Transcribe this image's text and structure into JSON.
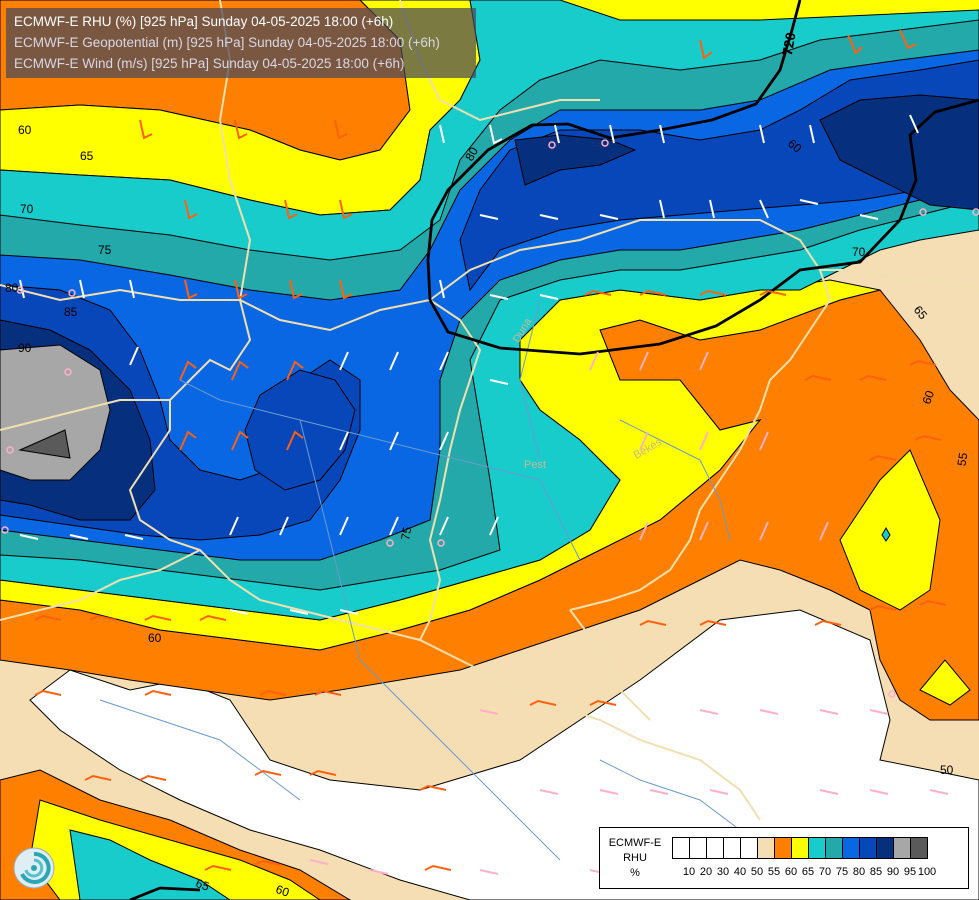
{
  "titles": {
    "line1": "ECMWF-E RHU (%) [925 hPa] Sunday 04-05-2025 18:00 (+6h)",
    "line2": "ECMWF-E Geopotential (m) [925 hPa] Sunday 04-05-2025 18:00 (+6h)",
    "line3": "ECMWF-E Wind (m/s) [925 hPa] Sunday 04-05-2025 18:00 (+6h)"
  },
  "legend": {
    "model": "ECMWF-E",
    "variable": "RHU",
    "unit": "%",
    "ticks": [
      "10",
      "20",
      "30",
      "40",
      "50",
      "55",
      "60",
      "65",
      "70",
      "75",
      "80",
      "85",
      "90",
      "95",
      "100"
    ],
    "colors": [
      "#ffffff",
      "#ffffff",
      "#ffffff",
      "#ffffff",
      "#ffffff",
      "#f5deb3",
      "#ff8000",
      "#ffff00",
      "#19cccc",
      "#23a9a9",
      "#0a67e3",
      "#0847b9",
      "#06307e",
      "#a7a7a7",
      "#5a5a5a"
    ]
  },
  "map_labels": {
    "contour_labels": [
      "60",
      "65",
      "70",
      "75",
      "80",
      "85",
      "90",
      "80",
      "70",
      "65",
      "60",
      "55",
      "50",
      "60",
      "75",
      "60",
      "65",
      "60"
    ],
    "geopotential_label": "720",
    "place_labels": [
      "Pest",
      "Békés",
      "Duna"
    ]
  }
}
